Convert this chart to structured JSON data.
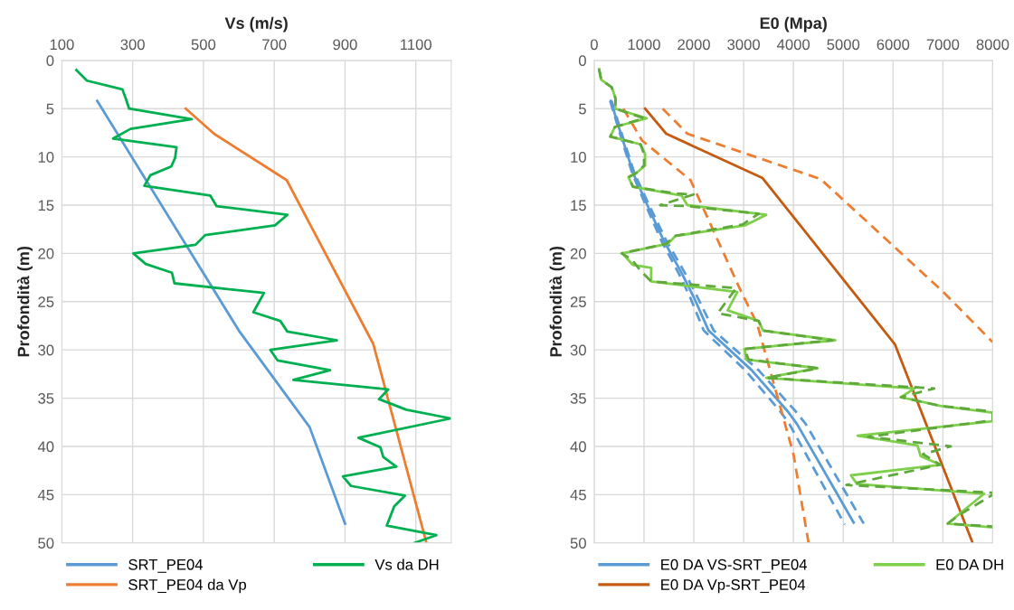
{
  "chart_data": [
    {
      "type": "line",
      "xlabel": "Vs (m/s)",
      "ylabel": "Profondità (m)",
      "xlim": [
        100,
        1200
      ],
      "xticks": [
        100,
        300,
        500,
        700,
        900,
        1100
      ],
      "ylim": [
        50,
        0
      ],
      "yticks": [
        0,
        5,
        10,
        15,
        20,
        25,
        30,
        35,
        40,
        45,
        50
      ],
      "grid": true,
      "legend": "bottom",
      "series": [
        {
          "name": "SRT_PE04",
          "color": "#5b9bd5",
          "x": [
            200,
            600,
            800,
            900
          ],
          "values": [
            4.2,
            28,
            38,
            48
          ]
        },
        {
          "name": "SRT_PE04 da Vp",
          "color": "#ed7d31",
          "x": [
            450,
            530,
            735,
            980,
            1130
          ],
          "values": [
            5,
            7.6,
            12.4,
            29.4,
            50
          ]
        },
        {
          "name": "Vs da DH",
          "color": "#00b050",
          "x": [
            141,
            171,
            271,
            281,
            290,
            467,
            294,
            245,
            424,
            420,
            409,
            350,
            333,
            519,
            537,
            737,
            702,
            505,
            478,
            302,
            337,
            411,
            418,
            671,
            641,
            717,
            737,
            877,
            689,
            710,
            858,
            754,
            1022,
            996,
            1073,
            1199,
            938,
            1000,
            1008,
            1045,
            894,
            917,
            1069,
            1039,
            1018,
            1158,
            1096
          ],
          "values": [
            1,
            2.1,
            3,
            4,
            5,
            6.1,
            7.1,
            8.1,
            9,
            10.1,
            11,
            11.9,
            13,
            14,
            15.1,
            16,
            17.1,
            18.1,
            19.1,
            20,
            21.1,
            22,
            23.1,
            24.1,
            26.1,
            27,
            28.1,
            29,
            30,
            31.1,
            32.1,
            33.1,
            34.1,
            35.1,
            36.2,
            37.1,
            39.1,
            40.1,
            41.1,
            42.1,
            43.1,
            44.1,
            45.1,
            46.2,
            48.2,
            49.2,
            50
          ]
        }
      ]
    },
    {
      "type": "line",
      "xlabel": "E0 (Mpa)",
      "ylabel": "Profondità (m)",
      "xlim": [
        0,
        8000
      ],
      "xticks": [
        0,
        1000,
        2000,
        3000,
        4000,
        5000,
        6000,
        7000,
        8000
      ],
      "ylim": [
        50,
        0
      ],
      "yticks": [
        0,
        5,
        10,
        15,
        20,
        25,
        30,
        35,
        40,
        45,
        50
      ],
      "grid": true,
      "legend": "bottom",
      "series": [
        {
          "name": "E0 DA VS-SRT_PE04",
          "color": "#5b9bd5",
          "x": [
            334,
            547,
            791,
            1094,
            1398,
            1763,
            2005,
            2297,
            3161,
            3890,
            4073,
            5209
          ],
          "values": [
            4.2,
            7.8,
            11.8,
            15.3,
            18.7,
            22.1,
            24.6,
            28,
            32.1,
            36.4,
            37.7,
            47.9
          ]
        },
        {
          "color": "#5b9bd5",
          "line_style": "dashed",
          "x": [
            320,
            530,
            770,
            1060,
            1350,
            1700,
            1930,
            2200,
            3030,
            3740,
            3920,
            5030
          ],
          "values": [
            4.2,
            7.8,
            11.8,
            15.3,
            18.7,
            22.1,
            24.6,
            28,
            32.1,
            36.4,
            37.7,
            48.1
          ]
        },
        {
          "color": "#5b9bd5",
          "line_style": "dashed",
          "x": [
            350,
            565,
            815,
            1130,
            1450,
            1830,
            2080,
            2400,
            3300,
            4050,
            4250,
            5410
          ],
          "values": [
            4.2,
            7.8,
            11.8,
            15.3,
            18.7,
            22.1,
            24.6,
            28,
            32.1,
            36.4,
            37.7,
            48
          ]
        },
        {
          "name": "E0 DA Vp-SRT_PE04",
          "color": "#c55a11",
          "x": [
            1021,
            1447,
            3380,
            6035,
            7597
          ],
          "values": [
            5,
            7.6,
            12.2,
            29.4,
            50
          ]
        },
        {
          "color": "#ed7d31",
          "line_style": "dashed",
          "x": [
            584,
            961,
            1933,
            2935,
            3271,
            4000,
            4303
          ],
          "values": [
            5,
            8.3,
            12.4,
            23.8,
            27.3,
            40.8,
            50
          ]
        },
        {
          "color": "#ed7d31",
          "line_style": "dashed",
          "x": [
            1374,
            1872,
            4547,
            7008,
            8000
          ],
          "values": [
            5,
            7.6,
            12.3,
            24,
            29.2
          ]
        },
        {
          "name": "E0 DA DH",
          "color": "#7ed04b",
          "x": [
            98,
            140,
            353,
            426,
            426,
            1052,
            414,
            323,
            930,
            1021,
            1021,
            839,
            687,
            778,
            1750,
            1872,
            3453,
            3026,
            1630,
            1477,
            565,
            778,
            1143,
            1143,
            2875,
            2680,
            3300,
            3391,
            4839,
            3015,
            3057,
            4485,
            3453,
            6430,
            6157,
            6946,
            8000,
            8000,
            5287,
            6490,
            6553,
            6946,
            5154,
            5276,
            7828,
            7402,
            7099,
            8000
          ],
          "values": [
            0.9,
            2,
            2.8,
            3.9,
            5,
            6,
            6.9,
            7.9,
            8.7,
            9.7,
            10.9,
            11.7,
            12.1,
            13.1,
            14,
            15,
            16,
            17.1,
            18.2,
            19,
            20,
            21.2,
            21.5,
            22.9,
            24,
            25.9,
            27,
            28,
            29,
            29.9,
            31,
            31.9,
            32.9,
            34,
            34.9,
            35.8,
            36.5,
            37.4,
            38.9,
            39.9,
            41,
            41.9,
            43,
            43.9,
            44.9,
            46.7,
            48,
            48.4
          ]
        },
        {
          "color": "#5fa83c",
          "line_style": "dashed",
          "x": [
            98,
            140,
            353,
            426,
            426,
            1000,
            414,
            323,
            930,
            1000,
            1000,
            839,
            687,
            778,
            1650,
            1995,
            1325,
            1872,
            3300,
            2980,
            1600,
            1450,
            550,
            750,
            930,
            1143,
            2850,
            2480,
            3300,
            3391,
            4780,
            3015,
            3100,
            4500,
            3453,
            6826,
            6157,
            6946,
            8000,
            8000,
            5500,
            7160,
            6600,
            6946,
            5063,
            8000,
            8000,
            7300,
            7099,
            8000
          ],
          "values": [
            0.9,
            2,
            2.8,
            3.9,
            5,
            6,
            6.9,
            7.9,
            8.7,
            9.7,
            10.9,
            11.7,
            12.1,
            13.1,
            13.8,
            13.9,
            15,
            15.1,
            15.9,
            17,
            18.2,
            19,
            20,
            20.6,
            21.8,
            22.9,
            23.6,
            26.2,
            27,
            28,
            29,
            29.9,
            31,
            31.9,
            32.9,
            34,
            34.9,
            35.8,
            36.4,
            37.3,
            39,
            40,
            40.8,
            41.9,
            44,
            44.8,
            45,
            47.2,
            48,
            48.3
          ]
        }
      ]
    }
  ]
}
